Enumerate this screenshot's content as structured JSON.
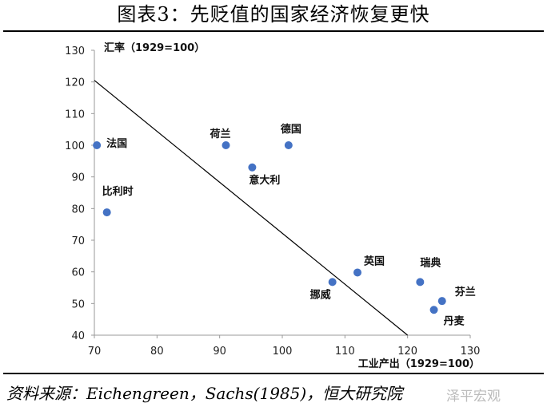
{
  "figure": {
    "title": "图表3：先贬值的国家经济恢复更快",
    "source": "资料来源：Eichengreen，Sachs(1985)，恒大研究院",
    "watermark": "泽平宏观"
  },
  "chart_data": {
    "type": "scatter",
    "xlabel": "工业产出（1929=100）",
    "ylabel": "汇率（1929=100）",
    "xlim": [
      70,
      130
    ],
    "ylim": [
      40,
      130
    ],
    "x_ticks": [
      70,
      80,
      90,
      100,
      110,
      120,
      130
    ],
    "y_ticks": [
      40,
      50,
      60,
      70,
      80,
      90,
      100,
      110,
      120,
      130
    ],
    "grid": false,
    "marker_color": "#4472c4",
    "points": [
      {
        "label": "法国",
        "x": 70.4,
        "y": 100,
        "label_pos": "right"
      },
      {
        "label": "比利时",
        "x": 72,
        "y": 78.8,
        "label_pos": "above-right"
      },
      {
        "label": "荷兰",
        "x": 91,
        "y": 100,
        "label_pos": "above-left"
      },
      {
        "label": "意大利",
        "x": 95.2,
        "y": 93,
        "label_pos": "below-right"
      },
      {
        "label": "德国",
        "x": 101,
        "y": 100,
        "label_pos": "above"
      },
      {
        "label": "挪威",
        "x": 108,
        "y": 56.8,
        "label_pos": "below-left"
      },
      {
        "label": "英国",
        "x": 112,
        "y": 59.8,
        "label_pos": "above-right"
      },
      {
        "label": "瑞典",
        "x": 122,
        "y": 56.8,
        "label_pos": "above-right"
      },
      {
        "label": "芬兰",
        "x": 125.5,
        "y": 50.8,
        "label_pos": "above-right"
      },
      {
        "label": "丹麦",
        "x": 124.2,
        "y": 48,
        "label_pos": "below-right"
      }
    ],
    "trendline": {
      "x1": 70,
      "y1": 120.5,
      "x2": 120,
      "y2": 40,
      "color": "#000000"
    }
  }
}
